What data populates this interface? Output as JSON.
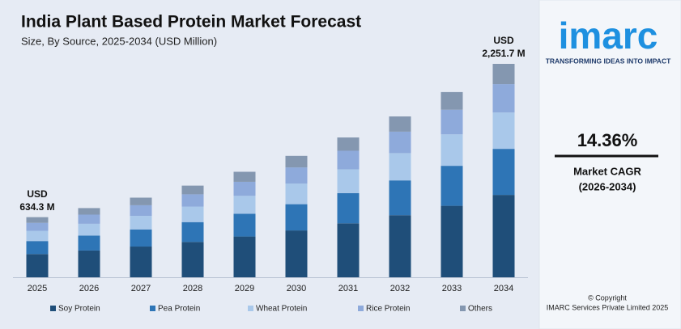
{
  "chart_data": {
    "type": "stacked-bar",
    "title": "India Plant Based Protein Market Forecast",
    "subtitle": "Size, By Source, 2025-2034 (USD Million)",
    "categories": [
      "2025",
      "2026",
      "2027",
      "2028",
      "2029",
      "2030",
      "2031",
      "2032",
      "2033",
      "2034"
    ],
    "series": [
      {
        "name": "Soy Protein",
        "color": "#1f4e79",
        "values": [
          245,
          282,
          324,
          373,
          430,
          494,
          569,
          655,
          754,
          869
        ]
      },
      {
        "name": "Pea Protein",
        "color": "#2e75b6",
        "values": [
          137,
          158,
          181,
          209,
          240,
          277,
          319,
          367,
          422,
          486
        ]
      },
      {
        "name": "Wheat Protein",
        "color": "#a9c8ea",
        "values": [
          108,
          124,
          143,
          164,
          189,
          218,
          251,
          288,
          332,
          383
        ]
      },
      {
        "name": "Rice Protein",
        "color": "#8eaadb",
        "values": [
          84,
          97,
          112,
          129,
          148,
          170,
          196,
          226,
          260,
          300
        ]
      },
      {
        "name": "Others",
        "color": "#8497b0",
        "values": [
          60.3,
          69,
          80,
          92,
          106,
          122,
          140,
          161,
          186,
          213.7
        ]
      }
    ],
    "annotations": [
      {
        "category": "2025",
        "value": 634.3,
        "lines": [
          "USD",
          "634.3 M"
        ]
      },
      {
        "category": "2034",
        "value": 2251.7,
        "lines": [
          "USD",
          "2,251.7 M"
        ]
      }
    ],
    "legend": "bottom"
  },
  "sidebar": {
    "logo": "imarc",
    "tagline": "TRANSFORMING IDEAS INTO IMPACT",
    "cagr": "14.36%",
    "cagr_label": "Market CAGR",
    "cagr_period": "(2026-2034)",
    "copyright": "© Copyright",
    "company": "IMARC Services Private Limited 2025"
  }
}
